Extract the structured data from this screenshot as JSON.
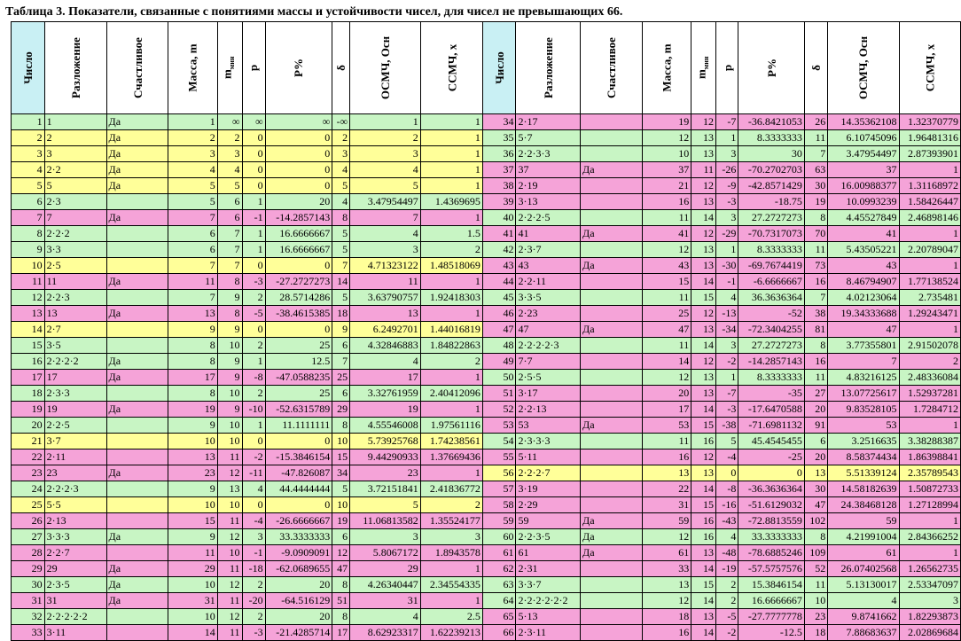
{
  "title": "Таблица 3. Показатели, связанные с понятиями массы и устойчивости чисел, для чисел не превышающих 66.",
  "headers": {
    "number": "Число",
    "factorization": "Разложение",
    "happy": "Счастливое",
    "mass": "Масса, m",
    "mmin_base": "m",
    "mmin_sub": "мин",
    "p": "p",
    "ppct": "P%",
    "delta": "δ",
    "osmch": "ОСМЧ, Осн",
    "ssmch": "ССМЧ, x"
  },
  "rows": [
    {
      "left": {
        "c": "g",
        "n": "1",
        "f": "1",
        "h": "Да",
        "m": "1",
        "mm": "∞",
        "p": "∞",
        "pp": "∞",
        "d": "-∞",
        "o": "1",
        "s": "1"
      },
      "right": {
        "c": "p",
        "n": "34",
        "f": "2·17",
        "h": "",
        "m": "19",
        "mm": "12",
        "p": "-7",
        "pp": "-36.8421053",
        "d": "26",
        "o": "14.35362108",
        "s": "1.32370779"
      }
    },
    {
      "left": {
        "c": "y",
        "n": "2",
        "f": "2",
        "h": "Да",
        "m": "2",
        "mm": "2",
        "p": "0",
        "pp": "0",
        "d": "2",
        "o": "2",
        "s": "1"
      },
      "right": {
        "c": "g",
        "n": "35",
        "f": "5·7",
        "h": "",
        "m": "12",
        "mm": "13",
        "p": "1",
        "pp": "8.3333333",
        "d": "11",
        "o": "6.10745096",
        "s": "1.96481316"
      }
    },
    {
      "left": {
        "c": "y",
        "n": "3",
        "f": "3",
        "h": "Да",
        "m": "3",
        "mm": "3",
        "p": "0",
        "pp": "0",
        "d": "3",
        "o": "3",
        "s": "1"
      },
      "right": {
        "c": "g",
        "n": "36",
        "f": "2·2·3·3",
        "h": "",
        "m": "10",
        "mm": "13",
        "p": "3",
        "pp": "30",
        "d": "7",
        "o": "3.47954497",
        "s": "2.87393901"
      }
    },
    {
      "left": {
        "c": "y",
        "n": "4",
        "f": "2·2",
        "h": "Да",
        "m": "4",
        "mm": "4",
        "p": "0",
        "pp": "0",
        "d": "4",
        "o": "4",
        "s": "1"
      },
      "right": {
        "c": "p",
        "n": "37",
        "f": "37",
        "h": "Да",
        "m": "37",
        "mm": "11",
        "p": "-26",
        "pp": "-70.2702703",
        "d": "63",
        "o": "37",
        "s": "1"
      }
    },
    {
      "left": {
        "c": "y",
        "n": "5",
        "f": "5",
        "h": "Да",
        "m": "5",
        "mm": "5",
        "p": "0",
        "pp": "0",
        "d": "5",
        "o": "5",
        "s": "1"
      },
      "right": {
        "c": "p",
        "n": "38",
        "f": "2·19",
        "h": "",
        "m": "21",
        "mm": "12",
        "p": "-9",
        "pp": "-42.8571429",
        "d": "30",
        "o": "16.00988377",
        "s": "1.31168972"
      }
    },
    {
      "left": {
        "c": "g",
        "n": "6",
        "f": "2·3",
        "h": "",
        "m": "5",
        "mm": "6",
        "p": "1",
        "pp": "20",
        "d": "4",
        "o": "3.47954497",
        "s": "1.4369695"
      },
      "right": {
        "c": "p",
        "n": "39",
        "f": "3·13",
        "h": "",
        "m": "16",
        "mm": "13",
        "p": "-3",
        "pp": "-18.75",
        "d": "19",
        "o": "10.0993239",
        "s": "1.58426447"
      }
    },
    {
      "left": {
        "c": "p",
        "n": "7",
        "f": "7",
        "h": "Да",
        "m": "7",
        "mm": "6",
        "p": "-1",
        "pp": "-14.2857143",
        "d": "8",
        "o": "7",
        "s": "1"
      },
      "right": {
        "c": "g",
        "n": "40",
        "f": "2·2·2·5",
        "h": "",
        "m": "11",
        "mm": "14",
        "p": "3",
        "pp": "27.2727273",
        "d": "8",
        "o": "4.45527849",
        "s": "2.46898146"
      }
    },
    {
      "left": {
        "c": "g",
        "n": "8",
        "f": "2·2·2",
        "h": "",
        "m": "6",
        "mm": "7",
        "p": "1",
        "pp": "16.6666667",
        "d": "5",
        "o": "4",
        "s": "1.5"
      },
      "right": {
        "c": "p",
        "n": "41",
        "f": "41",
        "h": "Да",
        "m": "41",
        "mm": "12",
        "p": "-29",
        "pp": "-70.7317073",
        "d": "70",
        "o": "41",
        "s": "1"
      }
    },
    {
      "left": {
        "c": "g",
        "n": "9",
        "f": "3·3",
        "h": "",
        "m": "6",
        "mm": "7",
        "p": "1",
        "pp": "16.6666667",
        "d": "5",
        "o": "3",
        "s": "2"
      },
      "right": {
        "c": "g",
        "n": "42",
        "f": "2·3·7",
        "h": "",
        "m": "12",
        "mm": "13",
        "p": "1",
        "pp": "8.3333333",
        "d": "11",
        "o": "5.43505221",
        "s": "2.20789047"
      }
    },
    {
      "left": {
        "c": "y",
        "n": "10",
        "f": "2·5",
        "h": "",
        "m": "7",
        "mm": "7",
        "p": "0",
        "pp": "0",
        "d": "7",
        "o": "4.71323122",
        "s": "1.48518069"
      },
      "right": {
        "c": "p",
        "n": "43",
        "f": "43",
        "h": "Да",
        "m": "43",
        "mm": "13",
        "p": "-30",
        "pp": "-69.7674419",
        "d": "73",
        "o": "43",
        "s": "1"
      }
    },
    {
      "left": {
        "c": "p",
        "n": "11",
        "f": "11",
        "h": "Да",
        "m": "11",
        "mm": "8",
        "p": "-3",
        "pp": "-27.2727273",
        "d": "14",
        "o": "11",
        "s": "1"
      },
      "right": {
        "c": "p",
        "n": "44",
        "f": "2·2·11",
        "h": "",
        "m": "15",
        "mm": "14",
        "p": "-1",
        "pp": "-6.6666667",
        "d": "16",
        "o": "8.46794907",
        "s": "1.77138524"
      }
    },
    {
      "left": {
        "c": "g",
        "n": "12",
        "f": "2·2·3",
        "h": "",
        "m": "7",
        "mm": "9",
        "p": "2",
        "pp": "28.5714286",
        "d": "5",
        "o": "3.63790757",
        "s": "1.92418303"
      },
      "right": {
        "c": "g",
        "n": "45",
        "f": "3·3·5",
        "h": "",
        "m": "11",
        "mm": "15",
        "p": "4",
        "pp": "36.3636364",
        "d": "7",
        "o": "4.02123064",
        "s": "2.735481"
      }
    },
    {
      "left": {
        "c": "p",
        "n": "13",
        "f": "13",
        "h": "Да",
        "m": "13",
        "mm": "8",
        "p": "-5",
        "pp": "-38.4615385",
        "d": "18",
        "o": "13",
        "s": "1"
      },
      "right": {
        "c": "p",
        "n": "46",
        "f": "2·23",
        "h": "",
        "m": "25",
        "mm": "12",
        "p": "-13",
        "pp": "-52",
        "d": "38",
        "o": "19.34333688",
        "s": "1.29243471"
      }
    },
    {
      "left": {
        "c": "y",
        "n": "14",
        "f": "2·7",
        "h": "",
        "m": "9",
        "mm": "9",
        "p": "0",
        "pp": "0",
        "d": "9",
        "o": "6.2492701",
        "s": "1.44016819"
      },
      "right": {
        "c": "p",
        "n": "47",
        "f": "47",
        "h": "Да",
        "m": "47",
        "mm": "13",
        "p": "-34",
        "pp": "-72.3404255",
        "d": "81",
        "o": "47",
        "s": "1"
      }
    },
    {
      "left": {
        "c": "g",
        "n": "15",
        "f": "3·5",
        "h": "",
        "m": "8",
        "mm": "10",
        "p": "2",
        "pp": "25",
        "d": "6",
        "o": "4.32846883",
        "s": "1.84822863"
      },
      "right": {
        "c": "g",
        "n": "48",
        "f": "2·2·2·2·3",
        "h": "",
        "m": "11",
        "mm": "14",
        "p": "3",
        "pp": "27.2727273",
        "d": "8",
        "o": "3.77355801",
        "s": "2.91502078"
      }
    },
    {
      "left": {
        "c": "g",
        "n": "16",
        "f": "2·2·2·2",
        "h": "Да",
        "m": "8",
        "mm": "9",
        "p": "1",
        "pp": "12.5",
        "d": "7",
        "o": "4",
        "s": "2"
      },
      "right": {
        "c": "p",
        "n": "49",
        "f": "7·7",
        "h": "",
        "m": "14",
        "mm": "12",
        "p": "-2",
        "pp": "-14.2857143",
        "d": "16",
        "o": "7",
        "s": "2"
      }
    },
    {
      "left": {
        "c": "p",
        "n": "17",
        "f": "17",
        "h": "Да",
        "m": "17",
        "mm": "9",
        "p": "-8",
        "pp": "-47.0588235",
        "d": "25",
        "o": "17",
        "s": "1"
      },
      "right": {
        "c": "g",
        "n": "50",
        "f": "2·5·5",
        "h": "",
        "m": "12",
        "mm": "13",
        "p": "1",
        "pp": "8.3333333",
        "d": "11",
        "o": "4.83216125",
        "s": "2.48336084"
      }
    },
    {
      "left": {
        "c": "g",
        "n": "18",
        "f": "2·3·3",
        "h": "",
        "m": "8",
        "mm": "10",
        "p": "2",
        "pp": "25",
        "d": "6",
        "o": "3.32761959",
        "s": "2.40412096"
      },
      "right": {
        "c": "p",
        "n": "51",
        "f": "3·17",
        "h": "",
        "m": "20",
        "mm": "13",
        "p": "-7",
        "pp": "-35",
        "d": "27",
        "o": "13.07725617",
        "s": "1.52937281"
      }
    },
    {
      "left": {
        "c": "p",
        "n": "19",
        "f": "19",
        "h": "Да",
        "m": "19",
        "mm": "9",
        "p": "-10",
        "pp": "-52.6315789",
        "d": "29",
        "o": "19",
        "s": "1"
      },
      "right": {
        "c": "p",
        "n": "52",
        "f": "2·2·13",
        "h": "",
        "m": "17",
        "mm": "14",
        "p": "-3",
        "pp": "-17.6470588",
        "d": "20",
        "o": "9.83528105",
        "s": "1.7284712"
      }
    },
    {
      "left": {
        "c": "g",
        "n": "20",
        "f": "2·2·5",
        "h": "",
        "m": "9",
        "mm": "10",
        "p": "1",
        "pp": "11.1111111",
        "d": "8",
        "o": "4.55546008",
        "s": "1.97561116"
      },
      "right": {
        "c": "p",
        "n": "53",
        "f": "53",
        "h": "Да",
        "m": "53",
        "mm": "15",
        "p": "-38",
        "pp": "-71.6981132",
        "d": "91",
        "o": "53",
        "s": "1"
      }
    },
    {
      "left": {
        "c": "y",
        "n": "21",
        "f": "3·7",
        "h": "",
        "m": "10",
        "mm": "10",
        "p": "0",
        "pp": "0",
        "d": "10",
        "o": "5.73925768",
        "s": "1.74238561"
      },
      "right": {
        "c": "g",
        "n": "54",
        "f": "2·3·3·3",
        "h": "",
        "m": "11",
        "mm": "16",
        "p": "5",
        "pp": "45.4545455",
        "d": "6",
        "o": "3.2516635",
        "s": "3.38288387"
      }
    },
    {
      "left": {
        "c": "p",
        "n": "22",
        "f": "2·11",
        "h": "",
        "m": "13",
        "mm": "11",
        "p": "-2",
        "pp": "-15.3846154",
        "d": "15",
        "o": "9.44290933",
        "s": "1.37669436"
      },
      "right": {
        "c": "p",
        "n": "55",
        "f": "5·11",
        "h": "",
        "m": "16",
        "mm": "12",
        "p": "-4",
        "pp": "-25",
        "d": "20",
        "o": "8.58374434",
        "s": "1.86398841"
      }
    },
    {
      "left": {
        "c": "p",
        "n": "23",
        "f": "23",
        "h": "Да",
        "m": "23",
        "mm": "12",
        "p": "-11",
        "pp": "-47.826087",
        "d": "34",
        "o": "23",
        "s": "1"
      },
      "right": {
        "c": "y",
        "n": "56",
        "f": "2·2·2·7",
        "h": "",
        "m": "13",
        "mm": "13",
        "p": "0",
        "pp": "0",
        "d": "13",
        "o": "5.51339124",
        "s": "2.35789543"
      }
    },
    {
      "left": {
        "c": "g",
        "n": "24",
        "f": "2·2·2·3",
        "h": "",
        "m": "9",
        "mm": "13",
        "p": "4",
        "pp": "44.4444444",
        "d": "5",
        "o": "3.72151841",
        "s": "2.41836772"
      },
      "right": {
        "c": "p",
        "n": "57",
        "f": "3·19",
        "h": "",
        "m": "22",
        "mm": "14",
        "p": "-8",
        "pp": "-36.3636364",
        "d": "30",
        "o": "14.58182639",
        "s": "1.50872733"
      }
    },
    {
      "left": {
        "c": "y",
        "n": "25",
        "f": "5·5",
        "h": "",
        "m": "10",
        "mm": "10",
        "p": "0",
        "pp": "0",
        "d": "10",
        "o": "5",
        "s": "2"
      },
      "right": {
        "c": "p",
        "n": "58",
        "f": "2·29",
        "h": "",
        "m": "31",
        "mm": "15",
        "p": "-16",
        "pp": "-51.6129032",
        "d": "47",
        "o": "24.38468128",
        "s": "1.27128994"
      }
    },
    {
      "left": {
        "c": "p",
        "n": "26",
        "f": "2·13",
        "h": "",
        "m": "15",
        "mm": "11",
        "p": "-4",
        "pp": "-26.6666667",
        "d": "19",
        "o": "11.06813582",
        "s": "1.35524177"
      },
      "right": {
        "c": "p",
        "n": "59",
        "f": "59",
        "h": "Да",
        "m": "59",
        "mm": "16",
        "p": "-43",
        "pp": "-72.8813559",
        "d": "102",
        "o": "59",
        "s": "1"
      }
    },
    {
      "left": {
        "c": "g",
        "n": "27",
        "f": "3·3·3",
        "h": "Да",
        "m": "9",
        "mm": "12",
        "p": "3",
        "pp": "33.3333333",
        "d": "6",
        "o": "3",
        "s": "3"
      },
      "right": {
        "c": "g",
        "n": "60",
        "f": "2·2·3·5",
        "h": "Да",
        "m": "12",
        "mm": "16",
        "p": "4",
        "pp": "33.3333333",
        "d": "8",
        "o": "4.21991004",
        "s": "2.84366252"
      }
    },
    {
      "left": {
        "c": "p",
        "n": "28",
        "f": "2·2·7",
        "h": "",
        "m": "11",
        "mm": "10",
        "p": "-1",
        "pp": "-9.0909091",
        "d": "12",
        "o": "5.8067172",
        "s": "1.8943578"
      },
      "right": {
        "c": "p",
        "n": "61",
        "f": "61",
        "h": "Да",
        "m": "61",
        "mm": "13",
        "p": "-48",
        "pp": "-78.6885246",
        "d": "109",
        "o": "61",
        "s": "1"
      }
    },
    {
      "left": {
        "c": "p",
        "n": "29",
        "f": "29",
        "h": "Да",
        "m": "29",
        "mm": "11",
        "p": "-18",
        "pp": "-62.0689655",
        "d": "47",
        "o": "29",
        "s": "1"
      },
      "right": {
        "c": "p",
        "n": "62",
        "f": "2·31",
        "h": "",
        "m": "33",
        "mm": "14",
        "p": "-19",
        "pp": "-57.5757576",
        "d": "52",
        "o": "26.07402568",
        "s": "1.26562735"
      }
    },
    {
      "left": {
        "c": "g",
        "n": "30",
        "f": "2·3·5",
        "h": "Да",
        "m": "10",
        "mm": "12",
        "p": "2",
        "pp": "20",
        "d": "8",
        "o": "4.26340447",
        "s": "2.34554335"
      },
      "right": {
        "c": "g",
        "n": "63",
        "f": "3·3·7",
        "h": "",
        "m": "13",
        "mm": "15",
        "p": "2",
        "pp": "15.3846154",
        "d": "11",
        "o": "5.13130017",
        "s": "2.53347097"
      }
    },
    {
      "left": {
        "c": "p",
        "n": "31",
        "f": "31",
        "h": "Да",
        "m": "31",
        "mm": "11",
        "p": "-20",
        "pp": "-64.516129",
        "d": "51",
        "o": "31",
        "s": "1"
      },
      "right": {
        "c": "g",
        "n": "64",
        "f": "2·2·2·2·2·2",
        "h": "",
        "m": "12",
        "mm": "14",
        "p": "2",
        "pp": "16.6666667",
        "d": "10",
        "o": "4",
        "s": "3"
      }
    },
    {
      "left": {
        "c": "g",
        "n": "32",
        "f": "2·2·2·2·2",
        "h": "",
        "m": "10",
        "mm": "12",
        "p": "2",
        "pp": "20",
        "d": "8",
        "o": "4",
        "s": "2.5"
      },
      "right": {
        "c": "p",
        "n": "65",
        "f": "5·13",
        "h": "",
        "m": "18",
        "mm": "13",
        "p": "-5",
        "pp": "-27.7777778",
        "d": "23",
        "o": "9.8741662",
        "s": "1.82293873"
      }
    },
    {
      "left": {
        "c": "p",
        "n": "33",
        "f": "3·11",
        "h": "",
        "m": "14",
        "mm": "11",
        "p": "-3",
        "pp": "-21.4285714",
        "d": "17",
        "o": "8.62923317",
        "s": "1.62239213"
      },
      "right": {
        "c": "p",
        "n": "66",
        "f": "2·3·11",
        "h": "",
        "m": "16",
        "mm": "14",
        "p": "-2",
        "pp": "-12.5",
        "d": "18",
        "o": "7.88683637",
        "s": "2.02869684"
      }
    }
  ]
}
